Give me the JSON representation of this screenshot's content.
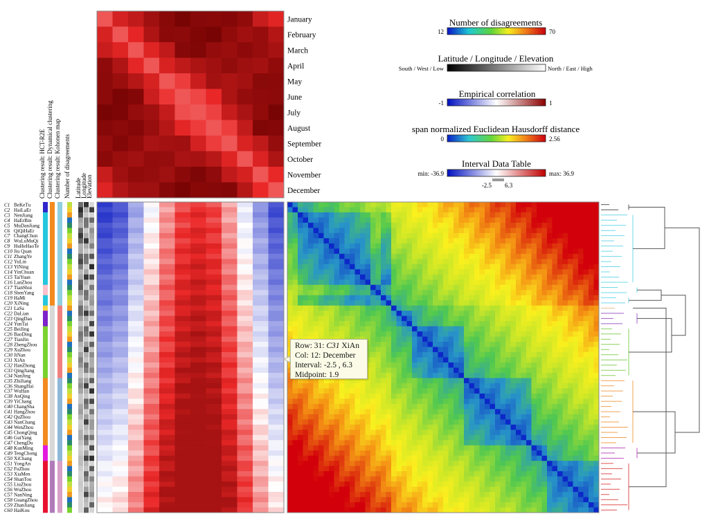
{
  "chart_data": [
    {
      "type": "heatmap",
      "id": "monthly-correlation",
      "categories": [
        "January",
        "February",
        "March",
        "April",
        "May",
        "June",
        "July",
        "August",
        "September",
        "October",
        "November",
        "December"
      ]
    },
    {
      "type": "heatmap",
      "id": "interval-data-table",
      "row_labels": [
        "BeKeTu",
        "HaiLaEr",
        "NenJiang",
        "HaErBin",
        "MuDanJiang",
        "QiQiHaEr",
        "ChangChun",
        "WuLuMuQi",
        "HuHeHaoTe",
        "Jiu Quan",
        "ZhangYe",
        "YuLin",
        "YiNing",
        "YinChuan",
        "TaiYuan",
        "LanZhou",
        "TianShui",
        "ShenYang",
        "HaMi",
        "XiNing",
        "LaSa",
        "DaLian",
        "QingDao",
        "YunTai",
        "BeiJing",
        "BaoDing",
        "TianJin",
        "ZhengZhou",
        "XuZhou",
        "JiNan",
        "XiAn",
        "HanZhong",
        "QingJiang",
        "NanJing",
        "ZhiJiang",
        "ShangHai",
        "WuHan",
        "AnQing",
        "YiChang",
        "ChangSha",
        "HangZhou",
        "QuZhou",
        "NanChang",
        "WenZhou",
        "ChongQing",
        "GuiYang",
        "ChengDu",
        "KunMing",
        "TengChong",
        "XiChang",
        "YongAn",
        "FuZhou",
        "XiaMen",
        "ShanTou",
        "LiuZhou",
        "WuZhou",
        "NanNing",
        "GuangZhou",
        "ZhanJiang",
        "HaiKou"
      ],
      "row_ids": [
        "C1",
        "C2",
        "C3",
        "C4",
        "C5",
        "C6",
        "C7",
        "C8",
        "C9",
        "C10",
        "C11",
        "C12",
        "C13",
        "C14",
        "C15",
        "C16",
        "C17",
        "C18",
        "C19",
        "C20",
        "C21",
        "C22",
        "C23",
        "C24",
        "C25",
        "C26",
        "C27",
        "C28",
        "C29",
        "C30",
        "C31",
        "C32",
        "C33",
        "C34",
        "C35",
        "C36",
        "C37",
        "C38",
        "C39",
        "C40",
        "C41",
        "C42",
        "C43",
        "C44",
        "C45",
        "C46",
        "C47",
        "C48",
        "C49",
        "C50",
        "C51",
        "C52",
        "C53",
        "C54",
        "C55",
        "C56",
        "C57",
        "C58",
        "C59",
        "C60"
      ],
      "columns": 12
    },
    {
      "type": "heatmap",
      "id": "station-distance-matrix",
      "size": 60
    }
  ],
  "side_columns": [
    "Clustering result: HCT-R2E",
    "Clustering result: Dynamical clustering",
    "Clustering result: Kohonen map",
    "Number of disagreements",
    "Latitude",
    "Longitude",
    "Elevation"
  ],
  "legends": {
    "disagreements": {
      "title": "Number of disagreements",
      "min": "12",
      "max": "70"
    },
    "latlon": {
      "title": "Latitude / Longitude / Elevation",
      "min": "South / West / Low",
      "max": "North / East / High"
    },
    "correlation": {
      "title": "Empirical correlation",
      "min": "-1",
      "max": "1"
    },
    "hausdorff": {
      "title": "span normalized Euclidean Hausdorff distance",
      "min": "0",
      "max": "2.56"
    },
    "interval": {
      "title": "Interval Data Table",
      "min": "min: -36.9",
      "max": "max: 36.9",
      "low": "-2.5",
      "high": "6.3"
    }
  },
  "tooltip": {
    "row_prefix": "Row: 31: ",
    "row_id": "C31",
    "row_name": " XiAn",
    "col": "Col: 12: December",
    "interval": "Interval: -2.5 , 6.3",
    "midpoint": "Midpoint: 1.9"
  },
  "colors": {
    "cluster_palette": [
      "#2f27c9",
      "#25c7de",
      "#ffc0cb",
      "#ffd040",
      "#7b22c9",
      "#7ad22f",
      "#f28a1e",
      "#e31adc",
      "#e8122f"
    ],
    "correlation_low": "#0018c8",
    "correlation_high": "#8e0000",
    "distance_low": "#0d3ec7",
    "distance_high": "#d60000"
  }
}
